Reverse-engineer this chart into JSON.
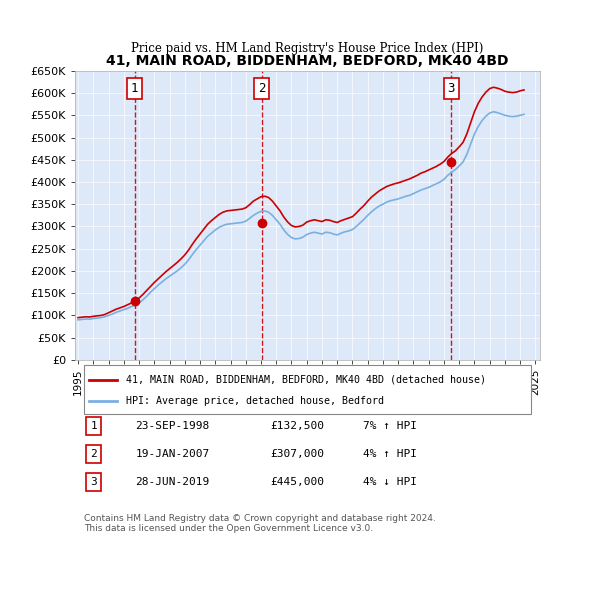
{
  "title": "41, MAIN ROAD, BIDDENHAM, BEDFORD, MK40 4BD",
  "subtitle": "Price paid vs. HM Land Registry's House Price Index (HPI)",
  "background_color": "#f0f4ff",
  "plot_bg_color": "#dde8f8",
  "ylim": [
    0,
    650000
  ],
  "yticks": [
    0,
    50000,
    100000,
    150000,
    200000,
    250000,
    300000,
    350000,
    400000,
    450000,
    500000,
    550000,
    600000,
    650000
  ],
  "ytick_labels": [
    "£0",
    "£50K",
    "£100K",
    "£150K",
    "£200K",
    "£250K",
    "£300K",
    "£350K",
    "£400K",
    "£450K",
    "£500K",
    "£550K",
    "£600K",
    "£650K"
  ],
  "sale_dates": [
    "1998-09-23",
    "2007-01-19",
    "2019-06-28"
  ],
  "sale_prices": [
    132500,
    307000,
    445000
  ],
  "sale_labels": [
    "1",
    "2",
    "3"
  ],
  "hpi_line_color": "#7ab0e0",
  "price_line_color": "#cc0000",
  "sale_dot_color": "#cc0000",
  "vline_color": "#cc0000",
  "legend_label_property": "41, MAIN ROAD, BIDDENHAM, BEDFORD, MK40 4BD (detached house)",
  "legend_label_hpi": "HPI: Average price, detached house, Bedford",
  "table_entries": [
    {
      "num": "1",
      "date": "23-SEP-1998",
      "price": "£132,500",
      "change": "7% ↑ HPI"
    },
    {
      "num": "2",
      "date": "19-JAN-2007",
      "price": "£307,000",
      "change": "4% ↑ HPI"
    },
    {
      "num": "3",
      "date": "28-JUN-2019",
      "price": "£445,000",
      "change": "4% ↓ HPI"
    }
  ],
  "footer": "Contains HM Land Registry data © Crown copyright and database right 2024.\nThis data is licensed under the Open Government Licence v3.0.",
  "hpi_years": [
    1995.0,
    1995.25,
    1995.5,
    1995.75,
    1996.0,
    1996.25,
    1996.5,
    1996.75,
    1997.0,
    1997.25,
    1997.5,
    1997.75,
    1998.0,
    1998.25,
    1998.5,
    1998.75,
    1999.0,
    1999.25,
    1999.5,
    1999.75,
    2000.0,
    2000.25,
    2000.5,
    2000.75,
    2001.0,
    2001.25,
    2001.5,
    2001.75,
    2002.0,
    2002.25,
    2002.5,
    2002.75,
    2003.0,
    2003.25,
    2003.5,
    2003.75,
    2004.0,
    2004.25,
    2004.5,
    2004.75,
    2005.0,
    2005.25,
    2005.5,
    2005.75,
    2006.0,
    2006.25,
    2006.5,
    2006.75,
    2007.0,
    2007.25,
    2007.5,
    2007.75,
    2008.0,
    2008.25,
    2008.5,
    2008.75,
    2009.0,
    2009.25,
    2009.5,
    2009.75,
    2010.0,
    2010.25,
    2010.5,
    2010.75,
    2011.0,
    2011.25,
    2011.5,
    2011.75,
    2012.0,
    2012.25,
    2012.5,
    2012.75,
    2013.0,
    2013.25,
    2013.5,
    2013.75,
    2014.0,
    2014.25,
    2014.5,
    2014.75,
    2015.0,
    2015.25,
    2015.5,
    2015.75,
    2016.0,
    2016.25,
    2016.5,
    2016.75,
    2017.0,
    2017.25,
    2017.5,
    2017.75,
    2018.0,
    2018.25,
    2018.5,
    2018.75,
    2019.0,
    2019.25,
    2019.5,
    2019.75,
    2020.0,
    2020.25,
    2020.5,
    2020.75,
    2021.0,
    2021.25,
    2021.5,
    2021.75,
    2022.0,
    2022.25,
    2022.5,
    2022.75,
    2023.0,
    2023.25,
    2023.5,
    2023.75,
    2024.0,
    2024.25
  ],
  "hpi_values": [
    90000,
    91000,
    92000,
    91500,
    93000,
    94000,
    95000,
    97000,
    100000,
    103000,
    107000,
    110000,
    113000,
    116000,
    120000,
    123000,
    128000,
    135000,
    143000,
    152000,
    160000,
    168000,
    175000,
    182000,
    188000,
    194000,
    200000,
    207000,
    215000,
    225000,
    237000,
    248000,
    258000,
    268000,
    278000,
    285000,
    292000,
    298000,
    302000,
    305000,
    306000,
    307000,
    308000,
    309000,
    312000,
    318000,
    325000,
    330000,
    334000,
    335000,
    332000,
    325000,
    315000,
    305000,
    292000,
    282000,
    275000,
    272000,
    273000,
    276000,
    282000,
    285000,
    287000,
    285000,
    283000,
    287000,
    286000,
    283000,
    281000,
    285000,
    288000,
    290000,
    293000,
    300000,
    308000,
    316000,
    325000,
    333000,
    340000,
    346000,
    350000,
    355000,
    358000,
    360000,
    362000,
    365000,
    368000,
    370000,
    374000,
    378000,
    382000,
    385000,
    388000,
    392000,
    396000,
    400000,
    406000,
    415000,
    422000,
    428000,
    436000,
    445000,
    462000,
    485000,
    508000,
    525000,
    538000,
    548000,
    555000,
    558000,
    556000,
    553000,
    550000,
    548000,
    547000,
    548000,
    550000,
    552000
  ],
  "price_years": [
    1995.0,
    1995.25,
    1995.5,
    1995.75,
    1996.0,
    1996.25,
    1996.5,
    1996.75,
    1997.0,
    1997.25,
    1997.5,
    1997.75,
    1998.0,
    1998.25,
    1998.5,
    1998.75,
    1999.0,
    1999.25,
    1999.5,
    1999.75,
    2000.0,
    2000.25,
    2000.5,
    2000.75,
    2001.0,
    2001.25,
    2001.5,
    2001.75,
    2002.0,
    2002.25,
    2002.5,
    2002.75,
    2003.0,
    2003.25,
    2003.5,
    2003.75,
    2004.0,
    2004.25,
    2004.5,
    2004.75,
    2005.0,
    2005.25,
    2005.5,
    2005.75,
    2006.0,
    2006.25,
    2006.5,
    2006.75,
    2007.0,
    2007.25,
    2007.5,
    2007.75,
    2008.0,
    2008.25,
    2008.5,
    2008.75,
    2009.0,
    2009.25,
    2009.5,
    2009.75,
    2010.0,
    2010.25,
    2010.5,
    2010.75,
    2011.0,
    2011.25,
    2011.5,
    2011.75,
    2012.0,
    2012.25,
    2012.5,
    2012.75,
    2013.0,
    2013.25,
    2013.5,
    2013.75,
    2014.0,
    2014.25,
    2014.5,
    2014.75,
    2015.0,
    2015.25,
    2015.5,
    2015.75,
    2016.0,
    2016.25,
    2016.5,
    2016.75,
    2017.0,
    2017.25,
    2017.5,
    2017.75,
    2018.0,
    2018.25,
    2018.5,
    2018.75,
    2019.0,
    2019.25,
    2019.5,
    2019.75,
    2020.0,
    2020.25,
    2020.5,
    2020.75,
    2021.0,
    2021.25,
    2021.5,
    2021.75,
    2022.0,
    2022.25,
    2022.5,
    2022.75,
    2023.0,
    2023.25,
    2023.5,
    2023.75,
    2024.0,
    2024.25
  ],
  "price_indexed_values": [
    95000,
    96000,
    97000,
    96500,
    98000,
    99000,
    100000,
    102000,
    106000,
    110000,
    114000,
    117000,
    120000,
    124000,
    128000,
    132500,
    139000,
    147000,
    156000,
    165000,
    174000,
    182000,
    190000,
    198000,
    205000,
    212000,
    219000,
    227000,
    236000,
    247000,
    260000,
    272000,
    283000,
    294000,
    305000,
    313000,
    320000,
    327000,
    332000,
    335000,
    336000,
    337000,
    338000,
    339000,
    342000,
    349000,
    357000,
    362000,
    367000,
    368000,
    365000,
    357000,
    346000,
    335000,
    321000,
    310000,
    302000,
    299000,
    300000,
    303000,
    310000,
    313000,
    315000,
    313000,
    311000,
    315000,
    314000,
    311000,
    309000,
    313000,
    316000,
    319000,
    322000,
    330000,
    339000,
    347000,
    357000,
    366000,
    373000,
    380000,
    385000,
    390000,
    393000,
    396000,
    398000,
    401000,
    404000,
    407000,
    411000,
    415000,
    420000,
    423000,
    427000,
    431000,
    435000,
    440000,
    446000,
    456000,
    464000,
    470000,
    479000,
    489000,
    508000,
    533000,
    558000,
    577000,
    591000,
    602000,
    610000,
    613000,
    611000,
    608000,
    604000,
    602000,
    601000,
    602000,
    605000,
    607000
  ],
  "xlim": [
    1994.8,
    2025.3
  ],
  "xtick_years": [
    1995,
    1996,
    1997,
    1998,
    1999,
    2000,
    2001,
    2002,
    2003,
    2004,
    2005,
    2006,
    2007,
    2008,
    2009,
    2010,
    2011,
    2012,
    2013,
    2014,
    2015,
    2016,
    2017,
    2018,
    2019,
    2020,
    2021,
    2022,
    2023,
    2024,
    2025
  ]
}
